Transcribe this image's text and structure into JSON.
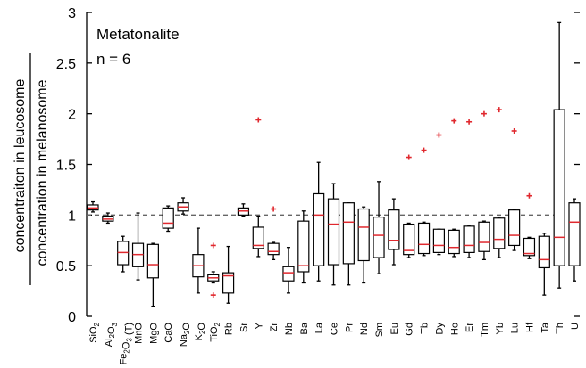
{
  "chart_data": {
    "type": "boxplot",
    "annotation": {
      "rock": "Metatonalite",
      "n": "n = 6"
    },
    "ylabel_top": "concentraiton in leucosome",
    "ylabel_bottom": "concentration in melanosome",
    "ylim": [
      0,
      3
    ],
    "yticks": [
      0,
      0.5,
      1,
      1.5,
      2,
      2.5,
      3
    ],
    "ytick_labels": [
      "0",
      "0.5",
      "1",
      "1.5",
      "2",
      "2.5",
      "3"
    ],
    "reference_line": 1,
    "categories": [
      {
        "label": "SiO",
        "sub": "2",
        "min": 1.03,
        "q1": 1.05,
        "median": 1.07,
        "q3": 1.1,
        "max": 1.13
      },
      {
        "label": "Al",
        "sub": "2",
        "tail": "O",
        "sub2": "3",
        "min": 0.92,
        "q1": 0.94,
        "median": 0.96,
        "q3": 0.99,
        "max": 1.02
      },
      {
        "label": "Fe",
        "sub": "2",
        "tail": "O",
        "sub2": "3",
        "tail2": " (T)",
        "min": 0.44,
        "q1": 0.51,
        "median": 0.63,
        "q3": 0.74,
        "max": 0.79
      },
      {
        "label": "MnO",
        "min": 0.36,
        "q1": 0.49,
        "median": 0.61,
        "q3": 0.72,
        "max": 1.02
      },
      {
        "label": "MgO",
        "min": 0.1,
        "q1": 0.38,
        "median": 0.51,
        "q3": 0.71,
        "max": 0.72
      },
      {
        "label": "CaO",
        "min": 0.84,
        "q1": 0.87,
        "median": 0.92,
        "q3": 1.07,
        "max": 1.09
      },
      {
        "label": "Na",
        "sub": "2",
        "tail": "O",
        "min": 1.01,
        "q1": 1.04,
        "median": 1.08,
        "q3": 1.12,
        "max": 1.17
      },
      {
        "label": "K",
        "sub": "2",
        "tail": "O",
        "min": 0.23,
        "q1": 0.39,
        "median": 0.5,
        "q3": 0.61,
        "max": 0.87
      },
      {
        "label": "TiO",
        "sub": "2",
        "min": 0.33,
        "q1": 0.35,
        "median": 0.38,
        "q3": 0.41,
        "max": 0.44,
        "outliers": [
          0.7,
          0.21
        ]
      },
      {
        "label": "Rb",
        "min": 0.13,
        "q1": 0.23,
        "median": 0.4,
        "q3": 0.43,
        "max": 0.69
      },
      {
        "label": "Sr",
        "min": 0.99,
        "q1": 1.0,
        "median": 1.04,
        "q3": 1.07,
        "max": 1.11
      },
      {
        "label": "Y",
        "min": 0.59,
        "q1": 0.67,
        "median": 0.7,
        "q3": 0.88,
        "max": 0.99,
        "outliers": [
          1.94
        ]
      },
      {
        "label": "Zr",
        "min": 0.56,
        "q1": 0.61,
        "median": 0.64,
        "q3": 0.72,
        "max": 0.73,
        "outliers": [
          1.06
        ]
      },
      {
        "label": "Nb",
        "min": 0.23,
        "q1": 0.35,
        "median": 0.43,
        "q3": 0.49,
        "max": 0.68
      },
      {
        "label": "Ba",
        "min": 0.33,
        "q1": 0.44,
        "median": 0.5,
        "q3": 0.94,
        "max": 1.04
      },
      {
        "label": "La",
        "min": 0.35,
        "q1": 0.5,
        "median": 1.0,
        "q3": 1.21,
        "max": 1.52
      },
      {
        "label": "Ce",
        "min": 0.31,
        "q1": 0.51,
        "median": 0.91,
        "q3": 1.16,
        "max": 1.31
      },
      {
        "label": "Pr",
        "min": 0.31,
        "q1": 0.52,
        "median": 0.93,
        "q3": 1.12,
        "max": 1.12
      },
      {
        "label": "Nd",
        "min": 0.33,
        "q1": 0.55,
        "median": 0.88,
        "q3": 1.06,
        "max": 1.08
      },
      {
        "label": "Sm",
        "min": 0.42,
        "q1": 0.58,
        "median": 0.8,
        "q3": 0.98,
        "max": 1.33
      },
      {
        "label": "Eu",
        "min": 0.51,
        "q1": 0.66,
        "median": 0.75,
        "q3": 1.05,
        "max": 1.16
      },
      {
        "label": "Gd",
        "min": 0.58,
        "q1": 0.61,
        "median": 0.65,
        "q3": 0.91,
        "max": 0.92,
        "outliers": [
          1.57
        ]
      },
      {
        "label": "Tb",
        "min": 0.6,
        "q1": 0.62,
        "median": 0.71,
        "q3": 0.92,
        "max": 0.93,
        "outliers": [
          1.64
        ]
      },
      {
        "label": "Dy",
        "min": 0.61,
        "q1": 0.63,
        "median": 0.7,
        "q3": 0.86,
        "max": 0.86,
        "outliers": [
          1.79
        ]
      },
      {
        "label": "Ho",
        "min": 0.59,
        "q1": 0.62,
        "median": 0.68,
        "q3": 0.85,
        "max": 0.86,
        "outliers": [
          1.93
        ]
      },
      {
        "label": "Er",
        "min": 0.58,
        "q1": 0.63,
        "median": 0.7,
        "q3": 0.89,
        "max": 0.9,
        "outliers": [
          1.92
        ]
      },
      {
        "label": "Tm",
        "min": 0.56,
        "q1": 0.64,
        "median": 0.73,
        "q3": 0.93,
        "max": 0.94,
        "outliers": [
          2.0
        ]
      },
      {
        "label": "Yb",
        "min": 0.58,
        "q1": 0.67,
        "median": 0.76,
        "q3": 0.97,
        "max": 0.98,
        "outliers": [
          2.04
        ]
      },
      {
        "label": "Lu",
        "min": 0.65,
        "q1": 0.7,
        "median": 0.8,
        "q3": 1.05,
        "max": 1.05,
        "outliers": [
          1.83
        ]
      },
      {
        "label": "Hf",
        "min": 0.57,
        "q1": 0.6,
        "median": 0.62,
        "q3": 0.77,
        "max": 0.78,
        "outliers": [
          1.19
        ]
      },
      {
        "label": "Ta",
        "min": 0.21,
        "q1": 0.48,
        "median": 0.56,
        "q3": 0.79,
        "max": 0.82
      },
      {
        "label": "Th",
        "min": 0.28,
        "q1": 0.5,
        "median": 0.78,
        "q3": 2.04,
        "max": 2.9
      },
      {
        "label": "U",
        "min": 0.35,
        "q1": 0.5,
        "median": 0.93,
        "q3": 1.12,
        "max": 1.16
      }
    ]
  }
}
